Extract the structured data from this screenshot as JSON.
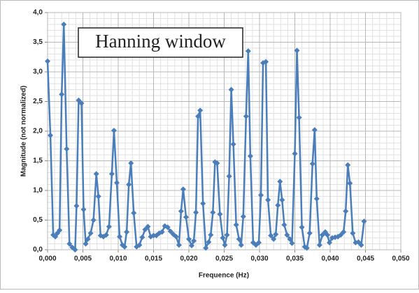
{
  "chart_data": {
    "type": "line",
    "annotation": "Hanning window",
    "xlabel": "Frequence (Hz)",
    "ylabel": "Magnitude (not normalized)",
    "color": "#4a7ebb",
    "grid": true,
    "minor_divisions": 5,
    "xlim": [
      0,
      0.05
    ],
    "xticks": [
      {
        "value": 0,
        "label": "0,000"
      },
      {
        "value": 0.005,
        "label": "0,005"
      },
      {
        "value": 0.01,
        "label": "0,010"
      },
      {
        "value": 0.015,
        "label": "0,015"
      },
      {
        "value": 0.02,
        "label": "0,020"
      },
      {
        "value": 0.025,
        "label": "0,025"
      },
      {
        "value": 0.03,
        "label": "0,030"
      },
      {
        "value": 0.035,
        "label": "0,035"
      },
      {
        "value": 0.04,
        "label": "0,040"
      },
      {
        "value": 0.045,
        "label": "0,045"
      },
      {
        "value": 0.05,
        "label": "0,050"
      }
    ],
    "ylim": [
      0,
      4
    ],
    "yticks": [
      {
        "value": 0,
        "label": "0,0"
      },
      {
        "value": 0.5,
        "label": "0,5"
      },
      {
        "value": 1,
        "label": "1,0"
      },
      {
        "value": 1.5,
        "label": "1,5"
      },
      {
        "value": 2,
        "label": "2,0"
      },
      {
        "value": 2.5,
        "label": "2,5"
      },
      {
        "value": 3,
        "label": "3,0"
      },
      {
        "value": 3.5,
        "label": "3,5"
      },
      {
        "value": 4,
        "label": "4,0"
      }
    ],
    "x": [
      0.0,
      0.0004,
      0.0008,
      0.0011,
      0.0014,
      0.0017,
      0.002,
      0.0023,
      0.0027,
      0.0031,
      0.0035,
      0.0039,
      0.0041,
      0.0044,
      0.0048,
      0.0051,
      0.0054,
      0.0057,
      0.0061,
      0.0065,
      0.0069,
      0.0072,
      0.0075,
      0.0079,
      0.0083,
      0.0087,
      0.0091,
      0.0094,
      0.0098,
      0.0102,
      0.0106,
      0.0109,
      0.0112,
      0.0115,
      0.0118,
      0.0122,
      0.0126,
      0.013,
      0.0134,
      0.0138,
      0.0142,
      0.0146,
      0.015,
      0.0154,
      0.0158,
      0.0162,
      0.0166,
      0.017,
      0.0174,
      0.0178,
      0.0182,
      0.0186,
      0.0189,
      0.0192,
      0.0196,
      0.02,
      0.0204,
      0.0207,
      0.021,
      0.0213,
      0.0216,
      0.022,
      0.0224,
      0.0228,
      0.0231,
      0.0234,
      0.0237,
      0.024,
      0.0244,
      0.0248,
      0.0251,
      0.0254,
      0.0257,
      0.026,
      0.0263,
      0.0267,
      0.0271,
      0.0274,
      0.0277,
      0.0281,
      0.0284,
      0.0287,
      0.0291,
      0.0295,
      0.0299,
      0.0302,
      0.0305,
      0.0309,
      0.0312,
      0.0316,
      0.032,
      0.0323,
      0.0326,
      0.0329,
      0.0332,
      0.0335,
      0.0339,
      0.0343,
      0.0346,
      0.035,
      0.0353,
      0.0356,
      0.036,
      0.0364,
      0.0367,
      0.0371,
      0.0375,
      0.0378,
      0.0381,
      0.0385,
      0.0389,
      0.0393,
      0.0396,
      0.0399,
      0.0403,
      0.0407,
      0.0411,
      0.0415,
      0.0419,
      0.0422,
      0.0425,
      0.0428,
      0.0432,
      0.0436,
      0.044,
      0.0444,
      0.0448
    ],
    "values": [
      3.18,
      1.93,
      0.25,
      0.22,
      0.28,
      0.33,
      2.62,
      3.8,
      1.7,
      0.1,
      0.04,
      0.0,
      0.74,
      2.52,
      2.47,
      0.68,
      0.1,
      0.18,
      0.28,
      0.5,
      1.28,
      0.9,
      0.24,
      0.22,
      0.25,
      0.39,
      1.28,
      2.01,
      1.13,
      0.22,
      0.08,
      0.05,
      0.3,
      1.1,
      1.46,
      0.62,
      0.05,
      0.08,
      0.21,
      0.34,
      0.39,
      0.22,
      0.24,
      0.24,
      0.28,
      0.3,
      0.4,
      0.38,
      0.31,
      0.26,
      0.22,
      0.08,
      0.65,
      1.02,
      0.55,
      0.18,
      0.07,
      0.15,
      0.63,
      2.25,
      2.35,
      0.78,
      0.03,
      0.13,
      0.25,
      0.63,
      1.48,
      1.46,
      0.6,
      0.2,
      0.08,
      0.25,
      1.24,
      2.7,
      1.78,
      0.42,
      0.18,
      0.08,
      0.56,
      2.25,
      3.35,
      1.58,
      0.12,
      0.08,
      0.12,
      0.92,
      3.15,
      3.17,
      0.84,
      0.24,
      0.18,
      0.26,
      0.75,
      1.15,
      0.84,
      0.42,
      0.25,
      0.18,
      0.11,
      1.62,
      3.36,
      2.23,
      0.38,
      0.05,
      0.03,
      0.28,
      1.45,
      2.02,
      0.86,
      0.08,
      0.25,
      0.3,
      0.25,
      0.12,
      0.2,
      0.21,
      0.22,
      0.25,
      0.3,
      0.65,
      1.43,
      1.12,
      0.28,
      0.12,
      0.13,
      0.08,
      0.48
    ]
  }
}
